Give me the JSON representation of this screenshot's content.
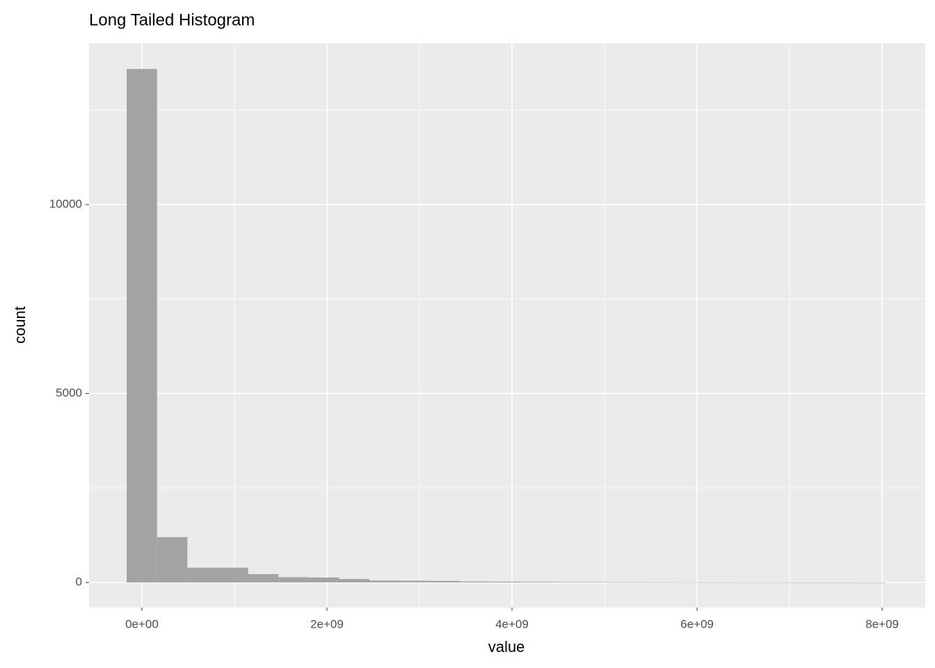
{
  "chart_data": {
    "type": "histogram",
    "title": "Long Tailed Histogram",
    "x_label": "value",
    "y_label": "count",
    "bins": [
      -164000000,
      164000000,
      492000000,
      820000000,
      1148000000,
      1476000000,
      1804000000,
      2132000000,
      2460000000,
      2788000000,
      3116000000,
      3444000000,
      3772000000,
      4100000000,
      4428000000,
      4756000000,
      5084000000,
      5412000000,
      5740000000,
      6068000000,
      6396000000,
      6724000000,
      7052000000,
      7380000000,
      7708000000,
      8036000000
    ],
    "counts": [
      13590,
      1200,
      390,
      390,
      220,
      140,
      130,
      90,
      50,
      45,
      40,
      25,
      20,
      18,
      15,
      12,
      8,
      6,
      5,
      4,
      3,
      3,
      2,
      2,
      1
    ],
    "color": "#a3a3a3",
    "xlim": [
      -571000000,
      8466000000
    ],
    "ylim": [
      -663,
      14273
    ],
    "xticks": [
      {
        "value": 0,
        "label": "0e+00"
      },
      {
        "value": 2000000000,
        "label": "2e+09"
      },
      {
        "value": 4000000000,
        "label": "4e+09"
      },
      {
        "value": 6000000000,
        "label": "6e+09"
      },
      {
        "value": 8000000000,
        "label": "8e+09"
      }
    ],
    "yticks": [
      0,
      5000,
      10000
    ],
    "x_minor_breaks": [
      1000000000,
      3000000000,
      5000000000,
      7000000000
    ],
    "y_minor_breaks": [
      2500,
      7500,
      12500
    ],
    "grid": true
  }
}
